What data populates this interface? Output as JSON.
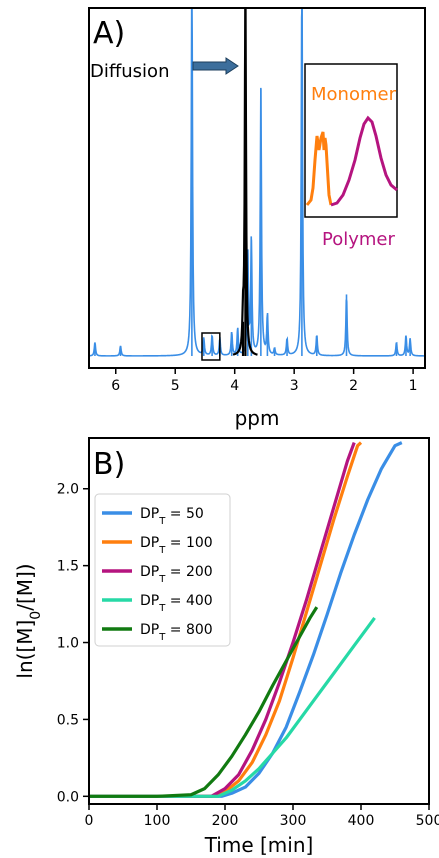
{
  "chart_data": [
    {
      "type": "line",
      "panel_label": "A)",
      "xlabel": "ppm",
      "xlim": [
        6.45,
        0.8
      ],
      "x_reversed": true,
      "xticks": [
        6,
        5,
        4,
        3,
        2,
        1
      ],
      "xtick_labels": [
        "6",
        "5",
        "4",
        "3",
        "2",
        "1"
      ],
      "y_axis_visible": false,
      "series": [
        {
          "color": "#3a8ee6",
          "peaks": [
            {
              "ppm": 6.35,
              "height": 0.04
            },
            {
              "ppm": 5.92,
              "height": 0.03
            },
            {
              "ppm": 4.72,
              "height": 1.12
            },
            {
              "ppm": 4.52,
              "height": 0.05
            },
            {
              "ppm": 4.38,
              "height": 0.06
            },
            {
              "ppm": 4.25,
              "height": 0.05
            },
            {
              "ppm": 4.05,
              "height": 0.07
            },
            {
              "ppm": 3.95,
              "height": 0.08
            },
            {
              "ppm": 3.78,
              "height": 0.3
            },
            {
              "ppm": 3.72,
              "height": 0.34
            },
            {
              "ppm": 3.56,
              "height": 0.78
            },
            {
              "ppm": 3.45,
              "height": 0.12
            },
            {
              "ppm": 3.33,
              "height": 0.02
            },
            {
              "ppm": 3.12,
              "height": 0.05
            },
            {
              "ppm": 2.87,
              "height": 1.12
            },
            {
              "ppm": 2.62,
              "height": 0.06
            },
            {
              "ppm": 2.12,
              "height": 0.18
            },
            {
              "ppm": 1.28,
              "height": 0.04
            },
            {
              "ppm": 1.12,
              "height": 0.06
            },
            {
              "ppm": 1.05,
              "height": 0.05
            }
          ]
        },
        {
          "color": "#000000",
          "peaks": [
            {
              "ppm": 3.82,
              "height": 1.08
            },
            {
              "ppm": 3.86,
              "height": 0.1
            }
          ]
        }
      ],
      "annotations": [
        {
          "text": "Diffusion",
          "arrow_to_ppm": 3.86
        },
        {
          "text": "Monomer",
          "color": "#ff7f0e"
        },
        {
          "text": "Polymer",
          "color": "#b5147f"
        }
      ],
      "highlight_box_ppm": [
        4.55,
        4.25
      ],
      "inset": {
        "monomer_color": "#ff7f0e",
        "polymer_color": "#b5147f"
      }
    },
    {
      "type": "line",
      "panel_label": "B)",
      "xlabel": "Time [min]",
      "ylabel": "ln([M]0/[M])",
      "xlim": [
        0,
        500
      ],
      "ylim": [
        -0.05,
        2.33
      ],
      "xticks": [
        0,
        100,
        200,
        300,
        400,
        500
      ],
      "yticks": [
        0.0,
        0.5,
        1.0,
        1.5,
        2.0
      ],
      "xtick_labels": [
        "0",
        "100",
        "200",
        "300",
        "400",
        "500"
      ],
      "ytick_labels": [
        "0.0",
        "0.5",
        "1.0",
        "1.5",
        "2.0"
      ],
      "legend_position": "upper-left",
      "series": [
        {
          "name": "DP_T = 50",
          "legend_base": "DP",
          "legend_sub": "T",
          "legend_rest": " = 50",
          "color": "#3a8ee6",
          "x": [
            0,
            100,
            195,
            210,
            230,
            250,
            270,
            290,
            310,
            330,
            350,
            370,
            390,
            410,
            430,
            450,
            460
          ],
          "y": [
            0.0,
            0.0,
            0.0,
            0.02,
            0.06,
            0.15,
            0.28,
            0.45,
            0.68,
            0.92,
            1.18,
            1.45,
            1.7,
            1.93,
            2.13,
            2.28,
            2.3
          ]
        },
        {
          "name": "DP_T = 100",
          "legend_base": "DP",
          "legend_sub": "T",
          "legend_rest": " = 100",
          "color": "#ff7f0e",
          "x": [
            0,
            100,
            185,
            200,
            220,
            240,
            260,
            280,
            300,
            320,
            340,
            360,
            380,
            395,
            400
          ],
          "y": [
            0.0,
            0.0,
            0.0,
            0.03,
            0.1,
            0.22,
            0.4,
            0.62,
            0.9,
            1.2,
            1.5,
            1.8,
            2.08,
            2.28,
            2.3
          ]
        },
        {
          "name": "DP_T = 200",
          "legend_base": "DP",
          "legend_sub": "T",
          "legend_rest": " = 200",
          "color": "#b5147f",
          "x": [
            0,
            100,
            180,
            200,
            220,
            240,
            260,
            280,
            300,
            320,
            340,
            360,
            380,
            390
          ],
          "y": [
            0.0,
            0.0,
            0.0,
            0.05,
            0.14,
            0.3,
            0.5,
            0.74,
            1.0,
            1.28,
            1.58,
            1.88,
            2.18,
            2.3
          ]
        },
        {
          "name": "DP_T = 400",
          "legend_base": "DP",
          "legend_sub": "T",
          "legend_rest": " = 400",
          "color": "#26d9a6",
          "x": [
            0,
            100,
            190,
            210,
            230,
            250,
            270,
            290,
            310,
            330,
            350,
            370,
            390,
            410,
            420
          ],
          "y": [
            0.0,
            0.0,
            0.0,
            0.04,
            0.1,
            0.18,
            0.28,
            0.38,
            0.5,
            0.62,
            0.74,
            0.86,
            0.98,
            1.1,
            1.16
          ]
        },
        {
          "name": "DP_T = 800",
          "legend_base": "DP",
          "legend_sub": "T",
          "legend_rest": " = 800",
          "color": "#117a11",
          "x": [
            0,
            50,
            100,
            150,
            170,
            190,
            210,
            230,
            250,
            270,
            290,
            310,
            325,
            335
          ],
          "y": [
            0.0,
            0.0,
            0.0,
            0.01,
            0.05,
            0.14,
            0.26,
            0.4,
            0.55,
            0.72,
            0.88,
            1.04,
            1.16,
            1.23
          ]
        }
      ]
    }
  ]
}
